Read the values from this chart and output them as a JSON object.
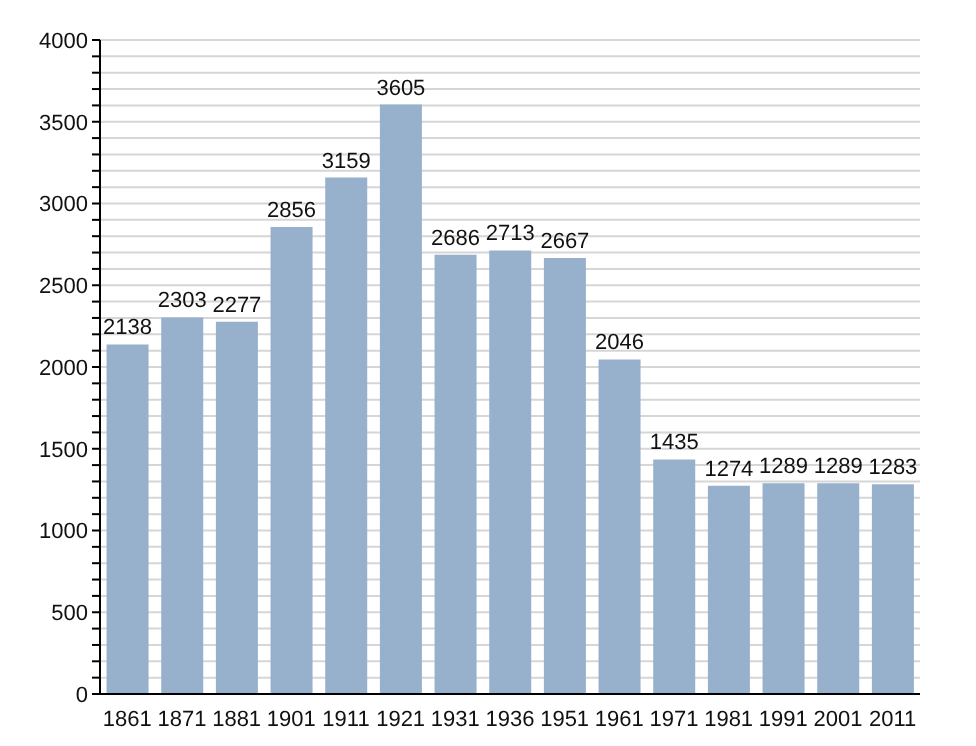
{
  "chart_data": {
    "type": "bar",
    "categories": [
      "1861",
      "1871",
      "1881",
      "1901",
      "1911",
      "1921",
      "1931",
      "1936",
      "1951",
      "1961",
      "1971",
      "1981",
      "1991",
      "2001",
      "2011"
    ],
    "values": [
      2138,
      2303,
      2277,
      2856,
      3159,
      3605,
      2686,
      2713,
      2667,
      2046,
      1435,
      1274,
      1289,
      1289,
      1283
    ],
    "color": "#97b0cb",
    "ylim": [
      0,
      4000
    ],
    "yticks": [
      0,
      {
        "value": 100,
        "label": null
      },
      {
        "value": 200,
        "label": null
      },
      {
        "value": 300,
        "label": null
      },
      {
        "value": 400,
        "label": null
      },
      500,
      {
        "value": 600,
        "label": null
      },
      {
        "value": 700,
        "label": null
      },
      {
        "value": 800,
        "label": null
      },
      {
        "value": 900,
        "label": null
      },
      1000,
      {
        "value": 1100,
        "label": null
      },
      {
        "value": 1200,
        "label": null
      },
      {
        "value": 1300,
        "label": null
      },
      {
        "value": 1400,
        "label": null
      },
      1500,
      {
        "value": 1600,
        "label": null
      },
      {
        "value": 1700,
        "label": null
      },
      {
        "value": 1800,
        "label": null
      },
      {
        "value": 1900,
        "label": null
      },
      2000,
      {
        "value": 2100,
        "label": null
      },
      {
        "value": 2200,
        "label": null
      },
      {
        "value": 2300,
        "label": null
      },
      {
        "value": 2400,
        "label": null
      },
      2500,
      {
        "value": 2600,
        "label": null
      },
      {
        "value": 2700,
        "label": null
      },
      {
        "value": 2800,
        "label": null
      },
      {
        "value": 2900,
        "label": null
      },
      3000,
      {
        "value": 3100,
        "label": null
      },
      {
        "value": 3200,
        "label": null
      },
      {
        "value": 3300,
        "label": null
      },
      {
        "value": 3400,
        "label": null
      },
      3500,
      {
        "value": 3600,
        "label": null
      },
      {
        "value": 3700,
        "label": null
      },
      {
        "value": 3800,
        "label": null
      },
      {
        "value": 3900,
        "label": null
      },
      4000
    ],
    "grid": "y",
    "data_labels": true
  }
}
